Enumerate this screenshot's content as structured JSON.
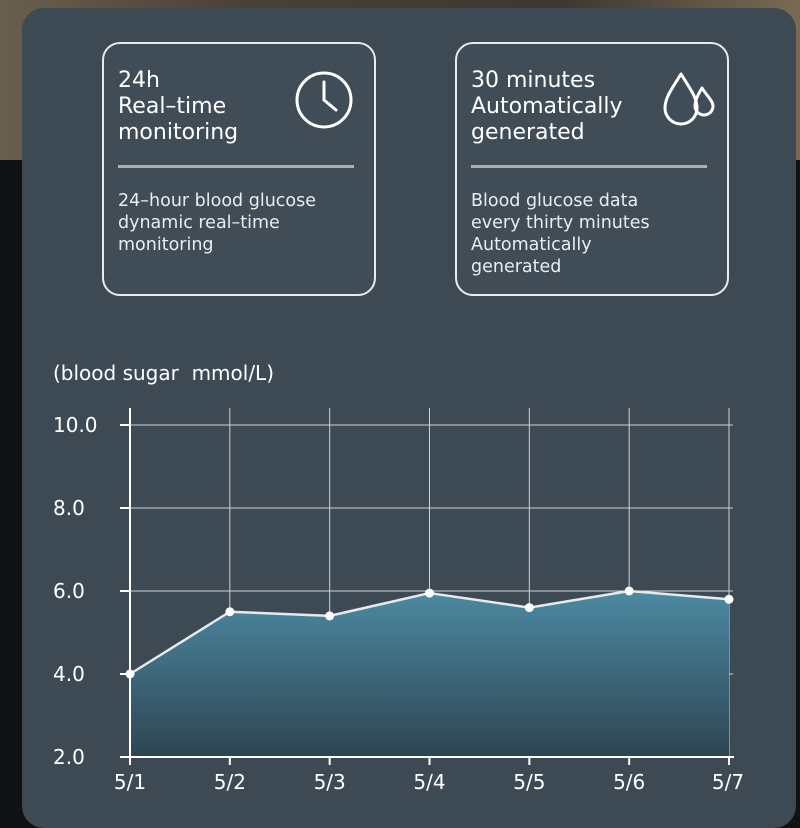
{
  "cards": [
    {
      "title": "24h\nReal–time\nmonitoring",
      "icon": "clock-icon",
      "description": "24–hour blood glucose\ndynamic real–time\nmonitoring"
    },
    {
      "title": "30 minutes\nAutomatically\ngenerated",
      "icon": "water-drops-icon",
      "description": "Blood glucose data\nevery thirty minutes\nAutomatically\ngenerated"
    }
  ],
  "chart_data": {
    "type": "area",
    "ylabel": "(blood sugar  mmol/L)",
    "categories": [
      "5/1",
      "5/2",
      "5/3",
      "5/4",
      "5/5",
      "5/6",
      "5/7"
    ],
    "values": [
      4.0,
      5.5,
      5.4,
      5.95,
      5.6,
      6.0,
      5.8
    ],
    "ylim": [
      2.0,
      10.0
    ],
    "yticks": [
      "2.0",
      "4.0",
      "6.0",
      "8.0",
      "10.0"
    ],
    "grid": true,
    "colors": {
      "fill_top": "#4c8aa3",
      "fill_bottom": "#2e4552",
      "line": "#e6eaed",
      "grid": "#cdd3d8"
    }
  }
}
